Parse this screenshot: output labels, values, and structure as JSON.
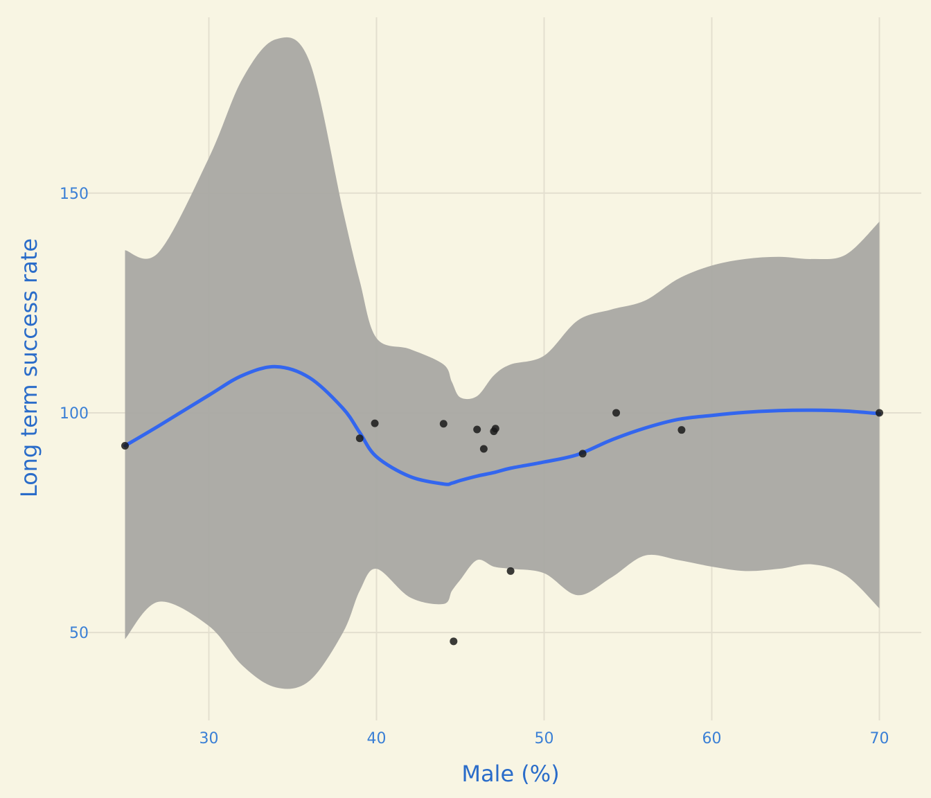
{
  "chart_data": {
    "type": "scatter",
    "xlabel": "Male (%)",
    "ylabel": "Long term success rate",
    "xlim": [
      22.5,
      72.5
    ],
    "ylim": [
      30,
      190
    ],
    "x_ticks": [
      30,
      40,
      50,
      60,
      70
    ],
    "y_ticks": [
      50,
      100,
      150
    ],
    "x_tick_labels": [
      "30",
      "40",
      "50",
      "60",
      "70"
    ],
    "y_tick_labels": [
      "50",
      "100",
      "150"
    ],
    "grid": true,
    "legend": "none",
    "colors": {
      "background": "#f8f5e3",
      "grid": "#e3dfcf",
      "points": "#1a1a1a",
      "smooth_line": "#3366ee",
      "confidence_band": "#a9a8a3",
      "text": "#3a7fd5"
    },
    "points": [
      {
        "x": 25.0,
        "y": 92.5
      },
      {
        "x": 39.0,
        "y": 94.2
      },
      {
        "x": 39.9,
        "y": 97.6
      },
      {
        "x": 44.0,
        "y": 97.5
      },
      {
        "x": 44.6,
        "y": 48.0
      },
      {
        "x": 46.0,
        "y": 96.2
      },
      {
        "x": 46.4,
        "y": 91.8
      },
      {
        "x": 47.0,
        "y": 95.8
      },
      {
        "x": 47.1,
        "y": 96.4
      },
      {
        "x": 48.0,
        "y": 64.0
      },
      {
        "x": 52.3,
        "y": 90.7
      },
      {
        "x": 54.3,
        "y": 100.0
      },
      {
        "x": 58.2,
        "y": 96.1
      },
      {
        "x": 70.0,
        "y": 100.0
      }
    ],
    "smooth": {
      "method": "loess",
      "x": [
        25,
        27,
        30,
        32,
        34,
        36,
        38,
        39,
        40,
        42,
        44,
        44.5,
        45,
        46,
        47,
        48,
        50,
        52,
        54,
        56,
        58,
        60,
        62,
        64,
        66,
        68,
        70
      ],
      "y": [
        92.5,
        97.0,
        104.0,
        108.5,
        110.5,
        108.0,
        101.0,
        95.5,
        90.0,
        85.5,
        83.8,
        84.0,
        84.6,
        85.6,
        86.4,
        87.4,
        88.8,
        90.5,
        93.8,
        96.5,
        98.5,
        99.4,
        100.1,
        100.5,
        100.6,
        100.4,
        99.8
      ],
      "upper": [
        137.0,
        136.5,
        158.0,
        176.0,
        185.0,
        180.0,
        146.0,
        130.0,
        117.0,
        114.5,
        111.0,
        107.0,
        103.5,
        103.8,
        108.5,
        111.0,
        113.0,
        121.0,
        123.5,
        125.5,
        130.5,
        133.5,
        135.0,
        135.5,
        135.0,
        136.0,
        143.5
      ],
      "lower": [
        48.5,
        57.0,
        51.5,
        42.5,
        37.5,
        39.0,
        50.0,
        59.5,
        64.5,
        58.0,
        56.5,
        59.5,
        62.0,
        66.5,
        65.0,
        64.5,
        63.5,
        58.5,
        62.5,
        67.5,
        66.5,
        65.0,
        64.0,
        64.5,
        65.5,
        63.0,
        55.5
      ]
    }
  }
}
